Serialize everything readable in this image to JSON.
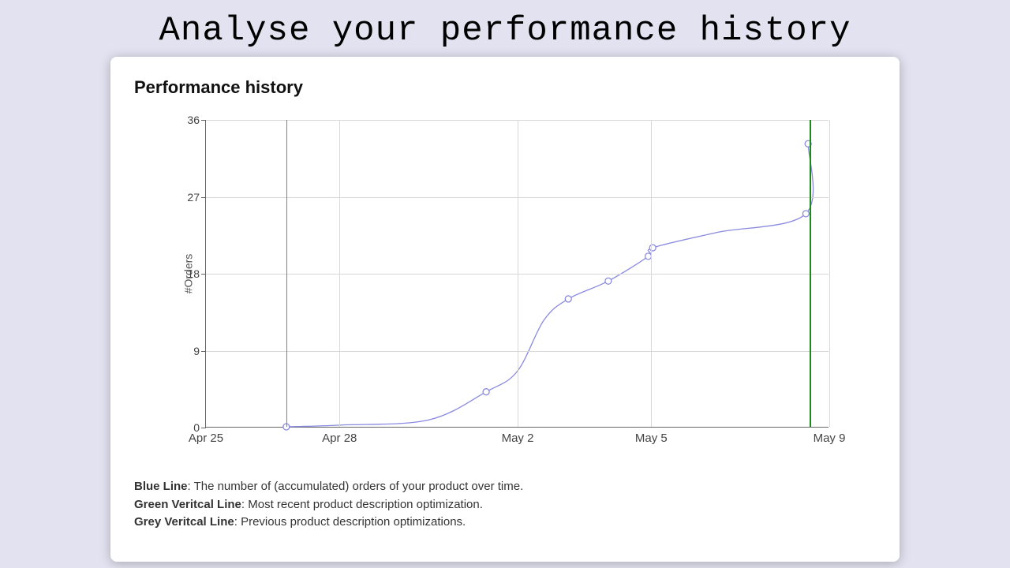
{
  "page": {
    "title": "Analyse your performance history",
    "background_color": "#e2e2f0"
  },
  "card": {
    "title": "Performance history",
    "background_color": "#ffffff"
  },
  "chart": {
    "type": "line",
    "y_axis_label": "#Orders",
    "ylim": [
      0,
      36
    ],
    "yticks": [
      0,
      9,
      18,
      27,
      36
    ],
    "x_domain_days": [
      "Apr 25",
      "Apr 26",
      "Apr 27",
      "Apr 28",
      "Apr 29",
      "Apr 30",
      "May 1",
      "May 2",
      "May 3",
      "May 4",
      "May 5",
      "May 6",
      "May 7",
      "May 8",
      "May 9"
    ],
    "xtick_labels": [
      {
        "idx": 0,
        "label": "Apr 25"
      },
      {
        "idx": 3,
        "label": "Apr 28"
      },
      {
        "idx": 7,
        "label": "May 2"
      },
      {
        "idx": 10,
        "label": "May 5"
      },
      {
        "idx": 14,
        "label": "May 9"
      }
    ],
    "grid_v_indices": [
      0,
      3,
      7,
      10,
      14
    ],
    "series": {
      "color": "#8a8adf",
      "line_width": 1.3,
      "marker_radius": 4,
      "marker_fill": "#ffffff",
      "points": [
        {
          "x_idx": 1.8,
          "y": 0,
          "marker": true
        },
        {
          "x_idx": 3,
          "y": 0.2,
          "marker": false
        },
        {
          "x_idx": 5,
          "y": 0.8,
          "marker": false
        },
        {
          "x_idx": 6.3,
          "y": 4.1,
          "marker": true
        },
        {
          "x_idx": 7,
          "y": 6.5,
          "marker": false
        },
        {
          "x_idx": 7.6,
          "y": 12.5,
          "marker": false
        },
        {
          "x_idx": 8.15,
          "y": 15.0,
          "marker": true
        },
        {
          "x_idx": 9.05,
          "y": 17.1,
          "marker": true
        },
        {
          "x_idx": 9.95,
          "y": 20.0,
          "marker": true
        },
        {
          "x_idx": 10.05,
          "y": 21.0,
          "marker": true
        },
        {
          "x_idx": 11.5,
          "y": 22.8,
          "marker": false
        },
        {
          "x_idx": 13.5,
          "y": 25.0,
          "marker": true
        },
        {
          "x_idx": 13.55,
          "y": 33.2,
          "marker": true
        }
      ]
    },
    "vertical_lines": {
      "grey": [
        {
          "x_idx": 1.8
        }
      ],
      "green": [
        {
          "x_idx": 13.55
        }
      ]
    },
    "grid_color": "#d8d8d8",
    "axis_color": "#666666"
  },
  "legend": {
    "items": [
      {
        "label": "Blue Line",
        "text": ": The number of (accumulated) orders of your product over time."
      },
      {
        "label": "Green Veritcal Line",
        "text": ": Most recent product description optimization."
      },
      {
        "label": "Grey Veritcal Line",
        "text": ": Previous product description optimizations."
      }
    ]
  }
}
